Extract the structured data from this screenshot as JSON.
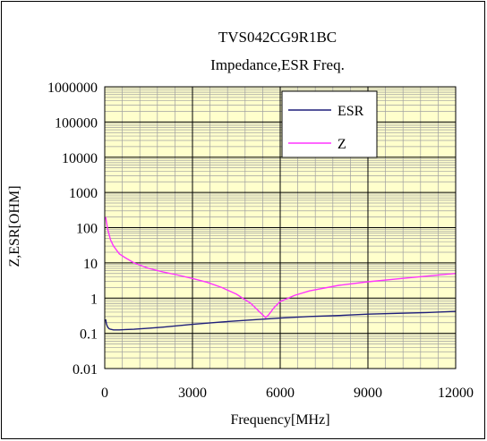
{
  "chart_data": {
    "type": "line",
    "title": "TVS042CG9R1BC",
    "subtitle": "Impedance,ESR Freq.",
    "xlabel": "Frequency[MHz]",
    "ylabel": "Z,ESR[OHM]",
    "xlim": [
      0,
      12000
    ],
    "ylim": [
      0.01,
      1000000
    ],
    "y_scale": "log",
    "x_ticks": [
      0,
      3000,
      6000,
      9000,
      12000
    ],
    "y_ticks": [
      0.01,
      0.1,
      1,
      10,
      100,
      1000,
      10000,
      100000,
      1000000
    ],
    "x_tick_labels": [
      "0",
      "3000",
      "6000",
      "9000",
      "12000"
    ],
    "y_tick_labels": [
      "0.01",
      "0.1",
      "1",
      "10",
      "100",
      "1000",
      "10000",
      "100000",
      "1000000"
    ],
    "grid": true,
    "legend_position": "top-right",
    "series": [
      {
        "name": "ESR",
        "color": "#1f1f7a",
        "x": [
          30,
          60,
          100,
          150,
          200,
          300,
          500,
          700,
          1000,
          1500,
          2000,
          3000,
          4000,
          5000,
          6000,
          7000,
          8000,
          9000,
          10000,
          11000,
          12000
        ],
        "y": [
          0.25,
          0.18,
          0.15,
          0.135,
          0.13,
          0.125,
          0.125,
          0.128,
          0.13,
          0.14,
          0.15,
          0.18,
          0.21,
          0.24,
          0.27,
          0.3,
          0.32,
          0.35,
          0.37,
          0.39,
          0.42
        ]
      },
      {
        "name": "Z",
        "color": "#ff33ff",
        "x": [
          30,
          60,
          100,
          200,
          300,
          500,
          700,
          1000,
          1500,
          2000,
          2500,
          3000,
          3500,
          4000,
          4500,
          5000,
          5300,
          5500,
          5600,
          5800,
          6000,
          6500,
          7000,
          8000,
          9000,
          10000,
          11000,
          12000
        ],
        "y": [
          200,
          140,
          90,
          45,
          30,
          18,
          14,
          10,
          7,
          5.5,
          4.5,
          3.6,
          2.8,
          2.0,
          1.3,
          0.7,
          0.4,
          0.28,
          0.33,
          0.55,
          0.8,
          1.2,
          1.6,
          2.3,
          2.9,
          3.5,
          4.2,
          5.0
        ]
      }
    ]
  }
}
